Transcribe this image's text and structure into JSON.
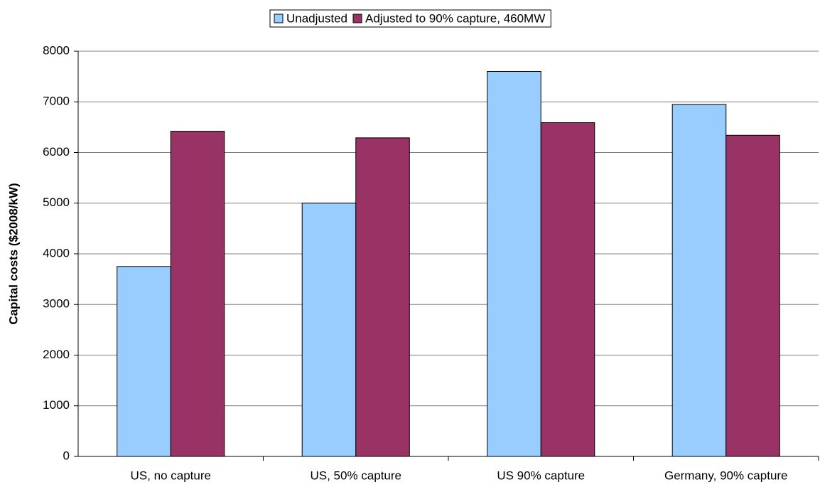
{
  "chart_data": {
    "type": "bar",
    "y_label": "Capital costs ($2008/kW)",
    "categories": [
      "US, no capture",
      "US, 50% capture",
      "US 90% capture",
      "Germany, 90% capture"
    ],
    "series": [
      {
        "name": "Unadjusted",
        "color": "#99ccff",
        "values": [
          3750,
          5000,
          7600,
          6950
        ]
      },
      {
        "name": "Adjusted to 90% capture, 460MW",
        "color": "#993366",
        "values": [
          6420,
          6290,
          6590,
          6340
        ]
      }
    ],
    "ylim": [
      0,
      8000
    ],
    "yticks": [
      0,
      1000,
      2000,
      3000,
      4000,
      5000,
      6000,
      7000,
      8000
    ],
    "grid": true,
    "legend": "top"
  }
}
